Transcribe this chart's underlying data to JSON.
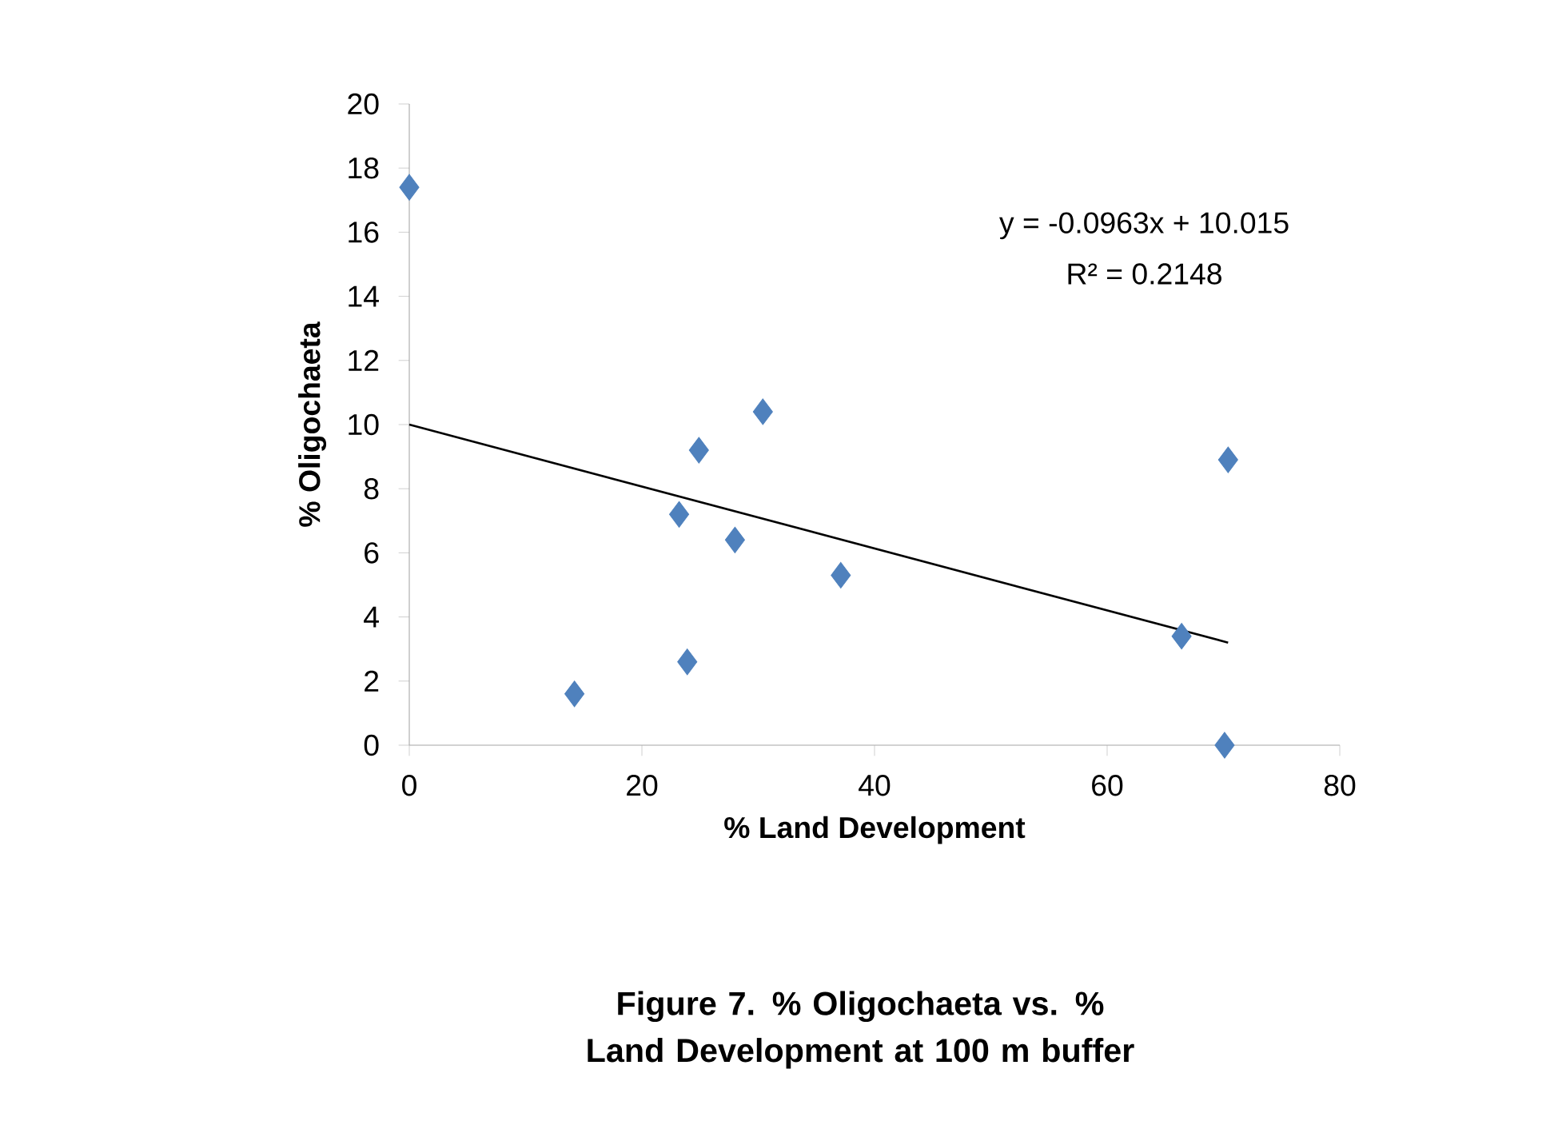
{
  "chart_data": {
    "type": "scatter",
    "title": "Figure 7. % Oligochaeta vs. % Land Development at 100 m buffer",
    "xlabel": "% Land Development",
    "ylabel": "% Oligochaeta",
    "annotations": [
      "y = -0.0963x + 10.015",
      "R² = 0.2148"
    ],
    "xlim": [
      0,
      80
    ],
    "xticks": [
      0,
      20,
      40,
      60,
      80
    ],
    "ylim": [
      0,
      20
    ],
    "yticks": [
      0,
      2,
      4,
      6,
      8,
      10,
      12,
      14,
      16,
      18,
      20
    ],
    "series": [
      {
        "color": "#4f81bd",
        "marker": "diamond",
        "x": [
          0,
          14.2,
          23.2,
          23.9,
          24.9,
          28.0,
          30.4,
          37.1,
          66.4,
          70.4,
          70.1
        ],
        "values": [
          17.4,
          1.6,
          7.2,
          2.6,
          9.2,
          6.4,
          10.4,
          5.3,
          3.4,
          8.9,
          0
        ]
      },
      {
        "type": "line",
        "marker": "none",
        "color": "#000000",
        "x": [
          0,
          70.4
        ],
        "values": [
          10.0,
          3.2
        ]
      }
    ]
  }
}
